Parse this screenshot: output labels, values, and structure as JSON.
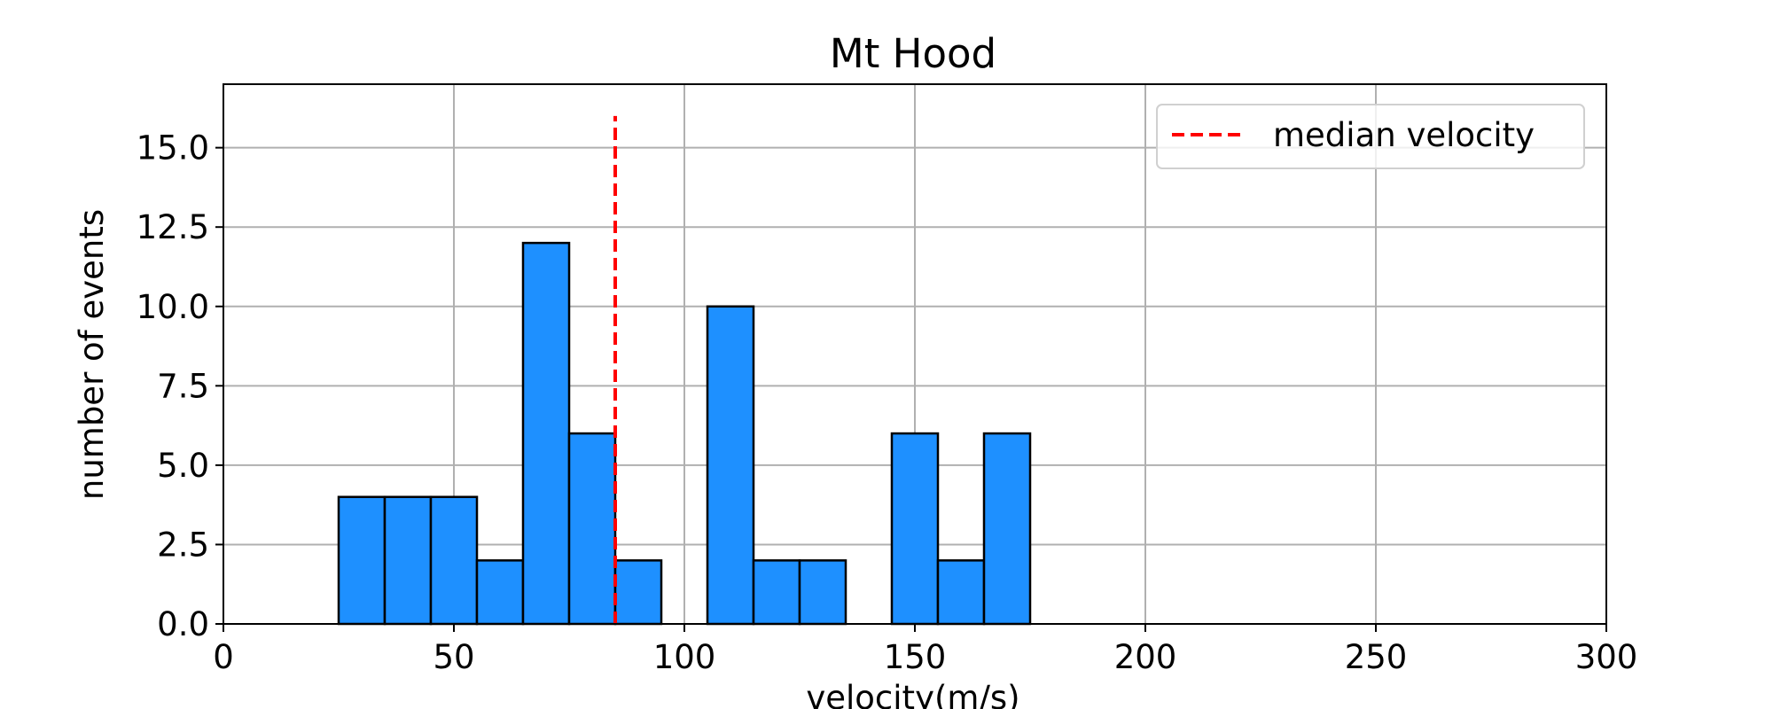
{
  "chart_data": {
    "type": "bar",
    "title": "Mt Hood",
    "xlabel": "velocity(m/s)",
    "ylabel": "number of events",
    "xlim": [
      0,
      300
    ],
    "ylim": [
      0,
      17
    ],
    "xticks": [
      0,
      50,
      100,
      150,
      200,
      250,
      300
    ],
    "xtick_labels": [
      "0",
      "50",
      "100",
      "150",
      "200",
      "250",
      "300"
    ],
    "yticks": [
      0,
      2.5,
      5,
      7.5,
      10,
      12.5,
      15
    ],
    "ytick_labels": [
      "0.0",
      "2.5",
      "5.0",
      "7.5",
      "10.0",
      "12.5",
      "15.0"
    ],
    "grid": true,
    "bin_width": 10,
    "bins": [
      {
        "start": 25,
        "end": 35,
        "count": 4
      },
      {
        "start": 35,
        "end": 45,
        "count": 4
      },
      {
        "start": 45,
        "end": 55,
        "count": 4
      },
      {
        "start": 55,
        "end": 65,
        "count": 2
      },
      {
        "start": 65,
        "end": 75,
        "count": 12
      },
      {
        "start": 75,
        "end": 85,
        "count": 6
      },
      {
        "start": 85,
        "end": 95,
        "count": 2
      },
      {
        "start": 105,
        "end": 115,
        "count": 10
      },
      {
        "start": 115,
        "end": 125,
        "count": 2
      },
      {
        "start": 125,
        "end": 135,
        "count": 2
      },
      {
        "start": 145,
        "end": 155,
        "count": 6
      },
      {
        "start": 155,
        "end": 165,
        "count": 2
      },
      {
        "start": 165,
        "end": 175,
        "count": 6
      }
    ],
    "bar_color": "#1e90ff",
    "median_line": {
      "x": 85,
      "y_top": 16,
      "color": "#ff0000",
      "style": "dashed"
    },
    "legend": {
      "position": "upper right",
      "entries": [
        "median velocity"
      ]
    }
  }
}
